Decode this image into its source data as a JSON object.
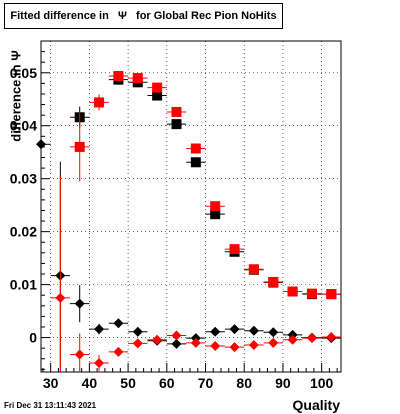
{
  "title": "Fitted difference in   Ψ   for Global Rec Pion NoHits",
  "footer": "Fri Dec 31 13:11:43 2021",
  "chart_data": {
    "type": "scatter",
    "title": "Fitted difference in   Ψ   for Global Rec Pion NoHits",
    "xlabel": "Quality",
    "ylabel": "difference in Ψ",
    "xlim": [
      27.5,
      105
    ],
    "ylim": [
      -0.0065,
      0.056
    ],
    "xticks": [
      30,
      40,
      50,
      60,
      70,
      80,
      90,
      100
    ],
    "yticks": [
      0,
      0.01,
      0.02,
      0.03,
      0.04,
      0.05
    ],
    "ytick_labels": [
      "0",
      "0.01",
      "0.02",
      "0.03",
      "0.04",
      "0.05"
    ],
    "grid": true,
    "series": [
      {
        "marker": "square",
        "color": "#000000",
        "x": [
          37.5,
          47.5,
          52.5,
          57.5,
          62.5,
          67.5,
          72.5,
          77.5,
          82.5,
          87.5,
          92.5,
          97.5,
          102.5
        ],
        "y": [
          0.0416,
          0.0487,
          0.0482,
          0.0457,
          0.0403,
          0.0331,
          0.0233,
          0.0162,
          0.0128,
          0.0104,
          0.0087,
          0.0082,
          0.0082
        ],
        "xerr": 2.5,
        "yerr": [
          0.002,
          0.0005,
          0.0005,
          0.0005,
          0.0005,
          0.0005,
          0.0005,
          0.0005,
          0.0004,
          0.0004,
          0.0004,
          0.0004,
          0.0004
        ]
      },
      {
        "marker": "square",
        "color": "#ff0000",
        "x": [
          37.5,
          42.5,
          47.5,
          52.5,
          57.5,
          62.5,
          67.5,
          72.5,
          77.5,
          82.5,
          87.5,
          92.5,
          97.5,
          102.5
        ],
        "y": [
          0.036,
          0.0444,
          0.0494,
          0.049,
          0.0472,
          0.0426,
          0.0357,
          0.0248,
          0.0167,
          0.0129,
          0.0105,
          0.0087,
          0.0083,
          0.0082
        ],
        "xerr": 2.5,
        "yerr": [
          0.0065,
          0.0015,
          0.0005,
          0.0005,
          0.0005,
          0.0005,
          0.0005,
          0.0005,
          0.0005,
          0.0004,
          0.0004,
          0.0004,
          0.0004,
          0.0004
        ]
      },
      {
        "marker": "diamond",
        "color": "#000000",
        "x": [
          27.5,
          32.5,
          37.5,
          42.5,
          47.5,
          52.5,
          57.5,
          62.5,
          67.5,
          72.5,
          77.5,
          82.5,
          87.5,
          92.5,
          97.5,
          102.5
        ],
        "y": [
          0.0365,
          0.0117,
          0.0064,
          0.0016,
          0.0027,
          0.0011,
          -0.0006,
          -0.0012,
          -0.0001,
          0.0011,
          0.0016,
          0.0013,
          0.001,
          0.0005,
          0.0,
          -0.0001
        ],
        "xerr": 2.5,
        "yerr": [
          0.025,
          0.0215,
          0.0035,
          0.001,
          0.0006,
          0.0005,
          0.0005,
          0.0005,
          0.0005,
          0.0004,
          0.0004,
          0.0004,
          0.0004,
          0.0004,
          0.0003,
          0.0003
        ]
      },
      {
        "marker": "diamond",
        "color": "#ff0000",
        "x": [
          32.5,
          37.5,
          42.5,
          47.5,
          52.5,
          57.5,
          62.5,
          67.5,
          72.5,
          77.5,
          82.5,
          87.5,
          92.5,
          97.5,
          102.5
        ],
        "y": [
          0.0075,
          -0.0032,
          -0.0048,
          -0.0027,
          -0.0011,
          -0.0004,
          0.0004,
          -0.001,
          -0.0016,
          -0.0018,
          -0.0014,
          -0.001,
          -0.0004,
          -0.0001,
          0.0001
        ],
        "xerr": 2.5,
        "yerr": [
          0.023,
          0.004,
          0.0015,
          0.0007,
          0.0005,
          0.0005,
          0.0005,
          0.0005,
          0.0004,
          0.0004,
          0.0004,
          0.0004,
          0.0004,
          0.0003,
          0.0003
        ]
      }
    ]
  }
}
